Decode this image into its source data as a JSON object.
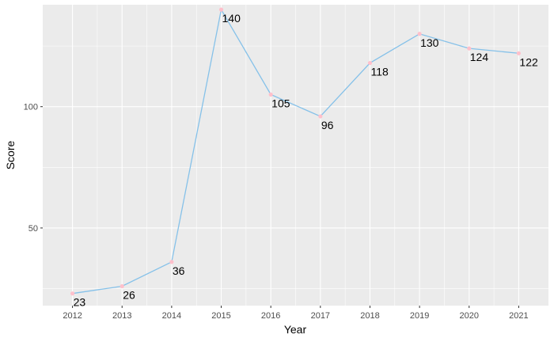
{
  "chart_data": {
    "type": "line",
    "xlabel": "Year",
    "ylabel": "Score",
    "x": [
      "2012",
      "2013",
      "2014",
      "2015",
      "2016",
      "2017",
      "2018",
      "2019",
      "2020",
      "2021"
    ],
    "series": [
      {
        "values": [
          23,
          26,
          36,
          140,
          105,
          96,
          118,
          130,
          124,
          122
        ],
        "labels": [
          "23",
          "26",
          "36",
          "140",
          "105",
          "96",
          "118",
          "130",
          "124",
          "122"
        ],
        "line_color": "#85C1E9",
        "point_color": "#FFC0CB"
      }
    ],
    "yticks": [
      50,
      100
    ],
    "ytick_labels": [
      "50",
      "100"
    ],
    "ylim": [
      18,
      142
    ],
    "grid": true,
    "legend": "none",
    "panel_color": "#EBEBEB",
    "grid_color": "#FFFFFF"
  }
}
